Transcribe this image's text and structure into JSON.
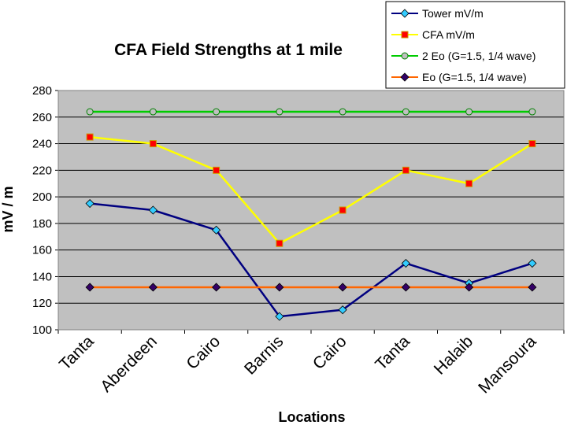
{
  "chart_data": {
    "type": "line",
    "title": "CFA Field Strengths at 1 mile",
    "xlabel": "Locations",
    "ylabel": "mV / m",
    "categories": [
      "Tanta",
      "Aberdeen",
      "Cairo",
      "Barnis",
      "Cairo",
      "Tanta",
      "Halaib",
      "Mansoura"
    ],
    "ylim": [
      100,
      280
    ],
    "yticks": [
      100,
      120,
      140,
      160,
      180,
      200,
      220,
      240,
      260,
      280
    ],
    "grid": true,
    "legend_position": "top-right",
    "series": [
      {
        "name": "Tower mV/m",
        "color": "#000080",
        "marker": "diamond",
        "marker_color": "#33CCFF",
        "values": [
          195,
          190,
          175,
          110,
          115,
          150,
          135,
          150
        ]
      },
      {
        "name": "CFA mV/m",
        "color": "#FFFF00",
        "marker": "square",
        "marker_color": "#FF0000",
        "values": [
          245,
          240,
          220,
          165,
          190,
          220,
          210,
          240
        ]
      },
      {
        "name": "2 Eo (G=1.5, 1/4 wave)",
        "color": "#00CC00",
        "marker": "circle",
        "marker_color": "#C0C0C0",
        "values": [
          264,
          264,
          264,
          264,
          264,
          264,
          264,
          264
        ]
      },
      {
        "name": "Eo (G=1.5, 1/4 wave)",
        "color": "#FF6600",
        "marker": "diamond",
        "marker_color": "#330066",
        "values": [
          132,
          132,
          132,
          132,
          132,
          132,
          132,
          132
        ]
      }
    ]
  }
}
